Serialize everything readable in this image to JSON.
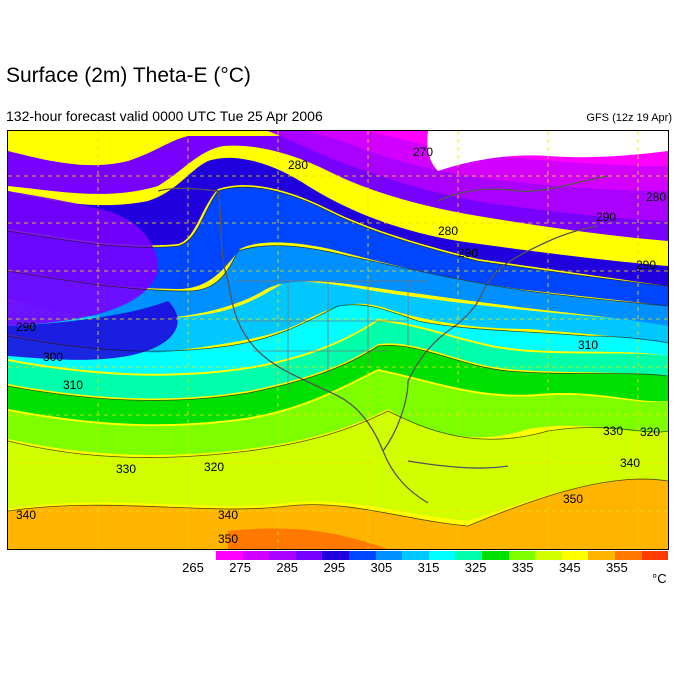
{
  "title": "Surface (2m) Theta-E (°C)",
  "subtitle": "132-hour forecast valid 0000 UTC Tue 25 Apr 2006",
  "model_run": "GFS (12z 19 Apr)",
  "unit": "°C",
  "colorbar": {
    "colors": [
      "#ff00ff",
      "#d200ff",
      "#aa00ff",
      "#7800ff",
      "#2000dc",
      "#0046ff",
      "#0090ff",
      "#00c8ff",
      "#00ffff",
      "#00ffaa",
      "#00e000",
      "#7eff00",
      "#d2ff00",
      "#ffff00",
      "#ffb400",
      "#ff7800",
      "#ff3c00"
    ],
    "labels": [
      "265",
      "275",
      "285",
      "295",
      "305",
      "315",
      "325",
      "335",
      "345",
      "355"
    ]
  },
  "contour_labels": [
    {
      "text": "280",
      "id": "c280a"
    },
    {
      "text": "270",
      "id": "c270"
    },
    {
      "text": "280",
      "id": "c280b"
    },
    {
      "text": "290",
      "id": "c290a"
    },
    {
      "text": "290",
      "id": "c290b"
    },
    {
      "text": "280",
      "id": "c280c"
    },
    {
      "text": "290",
      "id": "c290c"
    },
    {
      "text": "290",
      "id": "c290d"
    },
    {
      "text": "300",
      "id": "c300a"
    },
    {
      "text": "310",
      "id": "c310a"
    },
    {
      "text": "310",
      "id": "c310b"
    },
    {
      "text": "330",
      "id": "c330a"
    },
    {
      "text": "320",
      "id": "c320a"
    },
    {
      "text": "330",
      "id": "c330b"
    },
    {
      "text": "320",
      "id": "c320b"
    },
    {
      "text": "340",
      "id": "c340a"
    },
    {
      "text": "340",
      "id": "c340b"
    },
    {
      "text": "350",
      "id": "c350a"
    },
    {
      "text": "340",
      "id": "c340c"
    },
    {
      "text": "350",
      "id": "c350b"
    }
  ]
}
